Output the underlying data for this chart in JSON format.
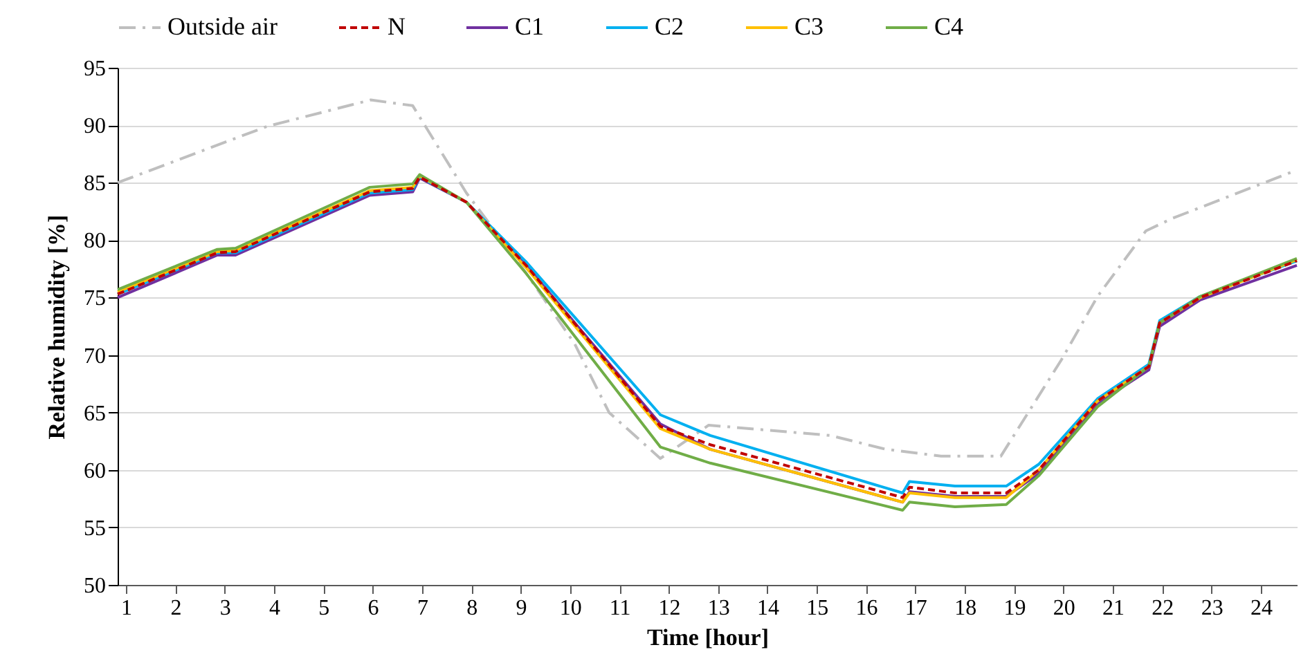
{
  "chart_data": {
    "type": "line",
    "xlabel": "Time [hour]",
    "ylabel": "Relative humidity [%]",
    "x": [
      0.83,
      2.85,
      3.22,
      5.94,
      6.81,
      6.95,
      7.9,
      9.11,
      11.83,
      12.84,
      16.74,
      16.88,
      17.8,
      18.84,
      19.5,
      20.69,
      21.73,
      21.95,
      22.77,
      24.73
    ],
    "xlim": [
      0.83,
      24.73
    ],
    "xticks": [
      1,
      2,
      3,
      4,
      5,
      6,
      7,
      8,
      9,
      10,
      11,
      12,
      13,
      14,
      15,
      16,
      17,
      18,
      19,
      20,
      21,
      22,
      23,
      24
    ],
    "ylim": [
      50,
      95
    ],
    "yticks": [
      50,
      55,
      60,
      65,
      70,
      75,
      80,
      85,
      90,
      95
    ],
    "grid": "y",
    "legend": "top",
    "marker": "none",
    "series": [
      {
        "name": "Outside air",
        "color": "#bfbfbf",
        "line_style": "dashdot",
        "x": [
          0.83,
          3.86,
          5.96,
          6.81,
          7.9,
          8.97,
          10.09,
          10.79,
          11.83,
          12.81,
          15.28,
          16.4,
          17.52,
          18.73,
          19.96,
          20.69,
          21.67,
          22.21,
          24.73
        ],
        "values": [
          85.0,
          89.9,
          92.2,
          91.7,
          84.1,
          78,
          71,
          65,
          61.0,
          63.9,
          63.0,
          61.8,
          61.2,
          61.2,
          69.6,
          75.1,
          80.8,
          81.9,
          86.1
        ]
      },
      {
        "name": "N",
        "color": "#c00000",
        "line_style": "dashed",
        "values": [
          75.3,
          78.9,
          79.0,
          84.2,
          84.5,
          85.5,
          83.3,
          77.8,
          63.8,
          62.2,
          57.6,
          58.5,
          58.0,
          58.0,
          60.0,
          66.0,
          69.0,
          72.8,
          75.0,
          78.2
        ]
      },
      {
        "name": "C1",
        "color": "#7030a0",
        "line_style": "solid",
        "values": [
          75.0,
          78.7,
          78.7,
          83.9,
          84.2,
          85.4,
          83.3,
          77.8,
          64.0,
          61.8,
          57.2,
          58.1,
          57.7,
          57.7,
          59.7,
          65.8,
          68.7,
          72.5,
          74.8,
          77.8
        ]
      },
      {
        "name": "C2",
        "color": "#00b0f0",
        "line_style": "solid",
        "values": [
          75.3,
          78.9,
          78.9,
          84.1,
          84.4,
          85.5,
          83.3,
          78.1,
          64.8,
          63.0,
          58.0,
          59.0,
          58.6,
          58.6,
          60.5,
          66.2,
          69.2,
          73.0,
          75.1,
          78.2
        ]
      },
      {
        "name": "C3",
        "color": "#ffc000",
        "line_style": "solid",
        "values": [
          75.5,
          79.0,
          79.1,
          84.3,
          84.6,
          85.6,
          83.3,
          77.6,
          63.6,
          61.8,
          57.2,
          58.0,
          57.6,
          57.6,
          60.0,
          66.0,
          69.0,
          72.8,
          75.0,
          78.3
        ]
      },
      {
        "name": "C4",
        "color": "#70ad47",
        "line_style": "solid",
        "values": [
          75.7,
          79.2,
          79.3,
          84.6,
          84.9,
          85.7,
          83.3,
          77.1,
          62.0,
          60.6,
          56.5,
          57.2,
          56.8,
          57.0,
          59.5,
          65.5,
          69.0,
          72.8,
          75.1,
          78.4
        ]
      }
    ]
  }
}
